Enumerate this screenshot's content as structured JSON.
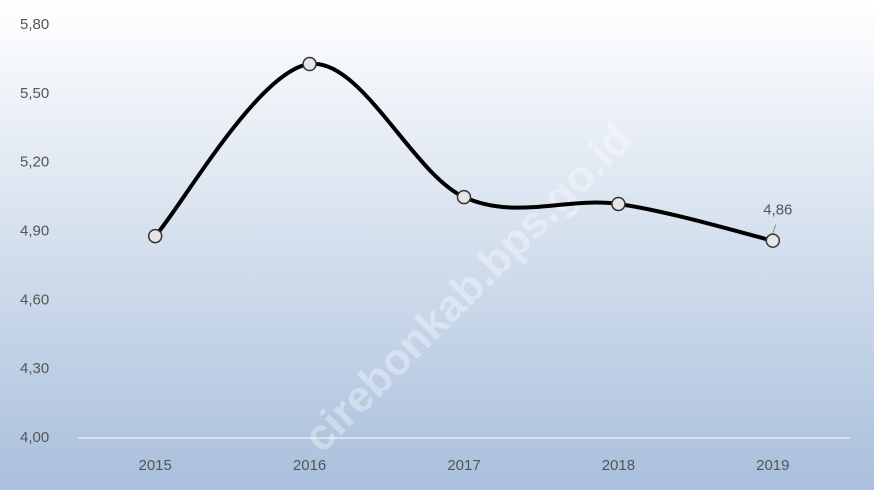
{
  "chart_data": {
    "type": "line",
    "categories": [
      "2015",
      "2016",
      "2017",
      "2018",
      "2019"
    ],
    "series": [
      {
        "color": "#000000",
        "values": [
          4.88,
          5.63,
          5.05,
          5.02,
          4.86
        ],
        "value_labels": [
          null,
          null,
          null,
          null,
          "4,86"
        ]
      }
    ],
    "ylim": [
      4.0,
      5.8
    ],
    "yticks": [
      {
        "value": 4.0,
        "label": "4,00"
      },
      {
        "value": 4.3,
        "label": "4,30"
      },
      {
        "value": 4.6,
        "label": "4,60"
      },
      {
        "value": 4.9,
        "label": "4,90"
      },
      {
        "value": 5.2,
        "label": "5,20"
      },
      {
        "value": 5.5,
        "label": "5,50"
      },
      {
        "value": 5.8,
        "label": "5,80"
      }
    ],
    "grid": false,
    "watermark": "cirebonkab.bps.go.id"
  }
}
